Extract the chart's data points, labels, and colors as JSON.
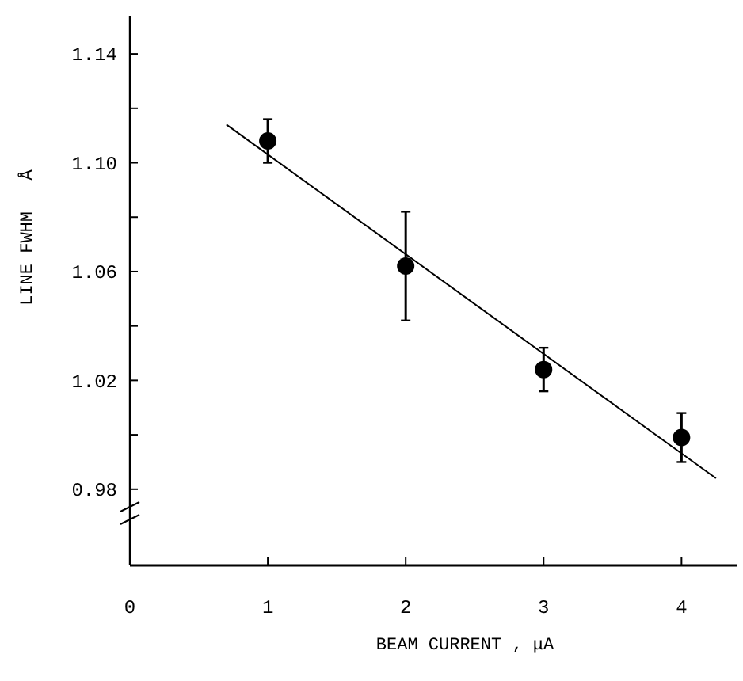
{
  "chart_data": {
    "type": "scatter",
    "xlabel": "BEAM CURRENT  ,  μA",
    "ylabel": "LINE FWHM   Å",
    "xlim": [
      0,
      4.4
    ],
    "ylim": [
      0.952,
      1.154
    ],
    "xticks": [
      {
        "value": 0,
        "label": "0"
      },
      1,
      2,
      3,
      4
    ],
    "yticks": [
      0.98,
      {
        "value": 1.0,
        "label": null
      },
      1.02,
      {
        "value": 1.04,
        "label": null
      },
      1.06,
      {
        "value": 1.08,
        "label": null
      },
      {
        "value": 1.1,
        "label": "1.10"
      },
      {
        "value": 1.12,
        "label": null
      },
      1.14
    ],
    "series": [
      {
        "color": "#000000",
        "marker": "circle",
        "x": [
          1,
          2,
          3,
          4
        ],
        "values": [
          1.108,
          1.062,
          1.024,
          0.999
        ],
        "errors": [
          0.008,
          0.02,
          0.008,
          0.009
        ]
      },
      {
        "type": "line",
        "color": "#000000",
        "marker": "none",
        "line_style": "solid",
        "x": [
          0.7,
          4.25
        ],
        "values": [
          1.114,
          0.984
        ]
      }
    ]
  }
}
